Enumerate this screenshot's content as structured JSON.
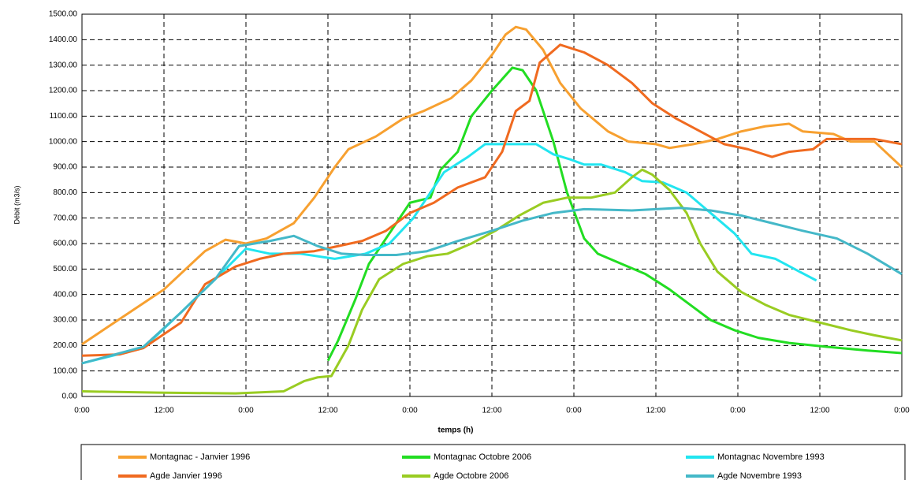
{
  "chart_data": {
    "type": "line",
    "xlabel": "temps (h)",
    "ylabel": "Débit (m3/s)",
    "xlim": [
      0,
      120
    ],
    "xticks": [
      {
        "value": 0,
        "label": "0:00"
      },
      {
        "value": 12,
        "label": "12:00"
      },
      {
        "value": 24,
        "label": "0:00"
      },
      {
        "value": 36,
        "label": "12:00"
      },
      {
        "value": 48,
        "label": "0:00"
      },
      {
        "value": 60,
        "label": "12:00"
      },
      {
        "value": 72,
        "label": "0:00"
      },
      {
        "value": 84,
        "label": "12:00"
      },
      {
        "value": 96,
        "label": "0:00"
      },
      {
        "value": 108,
        "label": "12:00"
      },
      {
        "value": 120,
        "label": "0:00"
      }
    ],
    "ylim": [
      0,
      1500
    ],
    "yticks": [
      {
        "value": 0,
        "label": "0.00"
      },
      {
        "value": 100,
        "label": "100.00"
      },
      {
        "value": 200,
        "label": "200.00"
      },
      {
        "value": 300,
        "label": "300.00"
      },
      {
        "value": 400,
        "label": "400.00"
      },
      {
        "value": 500,
        "label": "500.00"
      },
      {
        "value": 600,
        "label": "600.00"
      },
      {
        "value": 700,
        "label": "700.00"
      },
      {
        "value": 800,
        "label": "800.00"
      },
      {
        "value": 900,
        "label": "900.00"
      },
      {
        "value": 1000,
        "label": "1000.00"
      },
      {
        "value": 1100,
        "label": "1100.00"
      },
      {
        "value": 1200,
        "label": "1200.00"
      },
      {
        "value": 1300,
        "label": "1300.00"
      },
      {
        "value": 1400,
        "label": "1400.00"
      },
      {
        "value": 1500,
        "label": "1500.00"
      }
    ],
    "grid": true,
    "series": [
      {
        "name": "Montagnac - Janvier 1996",
        "color": "#f7a030",
        "x": [
          0,
          12,
          18,
          21,
          24,
          27,
          31,
          34,
          37,
          39,
          43,
          47,
          50,
          54,
          57,
          60,
          62,
          63.5,
          65,
          67.5,
          70,
          73,
          77,
          80,
          84,
          86,
          89.5,
          93,
          96.5,
          100,
          103.5,
          105.5,
          110,
          112.5,
          116,
          120
        ],
        "values": [
          205,
          420,
          570,
          615,
          600,
          620,
          680,
          780,
          900,
          970,
          1020,
          1090,
          1120,
          1170,
          1240,
          1340,
          1420,
          1450,
          1440,
          1360,
          1230,
          1130,
          1040,
          1000,
          990,
          975,
          990,
          1010,
          1040,
          1060,
          1070,
          1040,
          1030,
          1000,
          1000,
          900
        ]
      },
      {
        "name": "Montagnac Octobre 2006",
        "color": "#22dd22",
        "x": [
          36,
          37.5,
          40,
          42,
          44.5,
          48,
          51,
          52.5,
          55,
          57,
          60,
          63,
          64.5,
          66.5,
          69,
          71,
          73.5,
          75.5,
          79,
          82.5,
          86,
          89.5,
          92,
          95.5,
          99,
          103.5,
          109,
          115,
          120
        ],
        "values": [
          140,
          220,
          380,
          520,
          620,
          760,
          780,
          890,
          960,
          1100,
          1200,
          1290,
          1280,
          1200,
          1000,
          800,
          620,
          560,
          520,
          480,
          420,
          350,
          300,
          260,
          230,
          210,
          195,
          180,
          170
        ]
      },
      {
        "name": "Montagnac Novembre 1993",
        "color": "#22e5f0",
        "x": [
          0,
          9,
          14.5,
          19.5,
          24,
          27.5,
          32,
          37,
          41.5,
          45,
          48.5,
          50.5,
          53,
          56.5,
          59,
          63,
          66.5,
          69,
          71.5,
          73.5,
          76,
          79.5,
          82,
          85,
          88.5,
          92,
          95.5,
          98,
          101.5,
          105,
          107.5
        ],
        "values": [
          130,
          190,
          330,
          460,
          580,
          560,
          560,
          540,
          560,
          600,
          700,
          780,
          880,
          940,
          990,
          990,
          990,
          950,
          930,
          910,
          910,
          880,
          845,
          840,
          800,
          720,
          640,
          560,
          540,
          490,
          455
        ]
      },
      {
        "name": "Agde Janvier 1996",
        "color": "#f06a20",
        "x": [
          0,
          5.5,
          9,
          14.5,
          18,
          22.5,
          26,
          29.5,
          34,
          37.5,
          41,
          44.5,
          48,
          51.5,
          55,
          59,
          61.5,
          63.5,
          65.5,
          67,
          70,
          73.5,
          77,
          80.5,
          83.5,
          87,
          90.5,
          94,
          97.5,
          101,
          103.5,
          107,
          109,
          112.5,
          116,
          120
        ],
        "values": [
          160,
          165,
          190,
          290,
          440,
          510,
          540,
          560,
          570,
          590,
          610,
          650,
          720,
          760,
          820,
          860,
          960,
          1120,
          1160,
          1310,
          1380,
          1350,
          1300,
          1230,
          1150,
          1090,
          1040,
          990,
          970,
          940,
          960,
          970,
          1010,
          1010,
          1010,
          990
        ]
      },
      {
        "name": "Agde Octobre 2006",
        "color": "#99cc22",
        "x": [
          0,
          11,
          22.5,
          29.5,
          32.5,
          34.5,
          36.5,
          39,
          41,
          43.5,
          47,
          50.5,
          53.5,
          57,
          60.5,
          64,
          67.5,
          71,
          74.5,
          78,
          80.5,
          82,
          83.5,
          86,
          88.5,
          90.5,
          93,
          96.5,
          100,
          103.5,
          108,
          112.5,
          116,
          120
        ],
        "values": [
          20,
          15,
          12,
          20,
          60,
          75,
          80,
          200,
          340,
          460,
          520,
          550,
          560,
          600,
          650,
          710,
          760,
          780,
          780,
          800,
          860,
          890,
          870,
          810,
          720,
          600,
          490,
          410,
          360,
          320,
          290,
          260,
          240,
          220
        ]
      },
      {
        "name": "Agde Novembre 1993",
        "color": "#44b8c8",
        "x": [
          0,
          9,
          14.5,
          19.5,
          23,
          27.5,
          31,
          34.5,
          38,
          41.5,
          46,
          50.5,
          55,
          60,
          64.5,
          69,
          73.5,
          80.5,
          87.5,
          92,
          96.5,
          101,
          105.5,
          110.5,
          115,
          120
        ],
        "values": [
          130,
          195,
          330,
          460,
          590,
          610,
          630,
          590,
          560,
          555,
          555,
          570,
          610,
          650,
          690,
          720,
          735,
          730,
          740,
          730,
          710,
          680,
          650,
          620,
          560,
          480
        ]
      }
    ]
  }
}
